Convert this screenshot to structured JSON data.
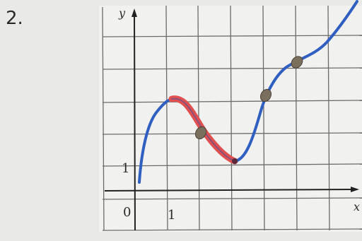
{
  "problem_number": "2.",
  "graph": {
    "y_label": "y",
    "x_label": "x",
    "origin_label": "0",
    "x_tick_label": "1",
    "y_tick_label": "1"
  }
}
